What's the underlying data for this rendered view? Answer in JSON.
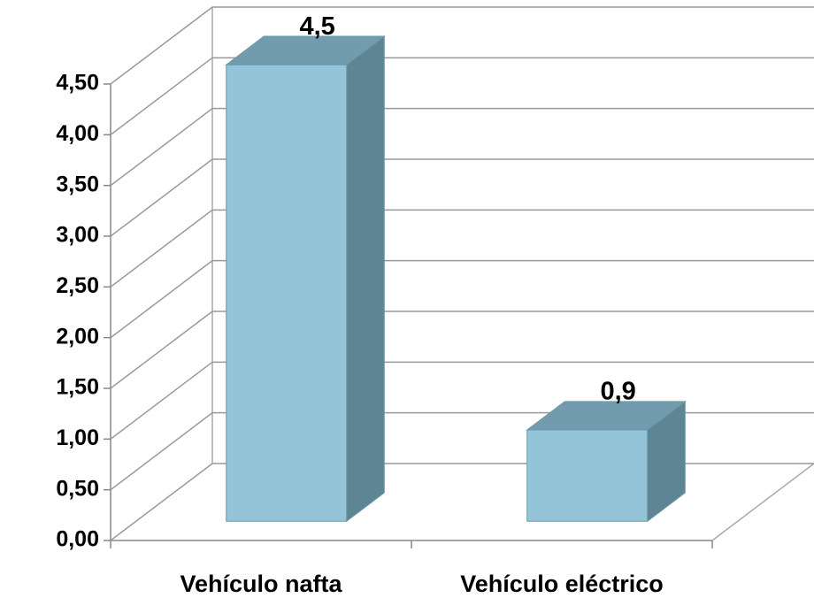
{
  "chart_data": {
    "type": "bar3d",
    "categories": [
      "Vehículo nafta",
      "Vehículo eléctrico"
    ],
    "values": [
      4.5,
      0.9
    ],
    "value_labels": [
      "4,5",
      "0,9"
    ],
    "color": "#93c4d8",
    "ylim": [
      0,
      4.5
    ],
    "yticks": [
      {
        "value": 0,
        "label": "0,00"
      },
      {
        "value": 0.5,
        "label": "0,50"
      },
      {
        "value": 1,
        "label": "1,00"
      },
      {
        "value": 1.5,
        "label": "1,50"
      },
      {
        "value": 2,
        "label": "2,00"
      },
      {
        "value": 2.5,
        "label": "2,50"
      },
      {
        "value": 3,
        "label": "3,00"
      },
      {
        "value": 3.5,
        "label": "3,50"
      },
      {
        "value": 4,
        "label": "4,00"
      },
      {
        "value": 4.5,
        "label": "4,50"
      }
    ],
    "grid": true
  }
}
